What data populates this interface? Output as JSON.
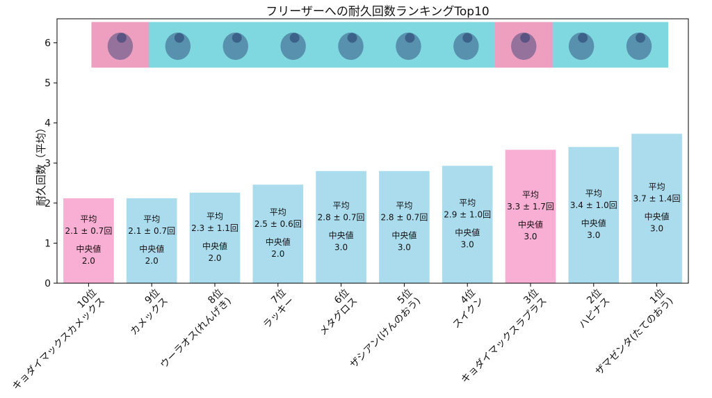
{
  "chart_data": {
    "type": "bar",
    "title": "フリーザーへの耐久回数ランキングTop10",
    "ylabel": "耐久回数（平均）",
    "xlabel": "",
    "ylim": [
      0,
      6.6
    ],
    "yticks": [
      0,
      1,
      2,
      3,
      4,
      5,
      6
    ],
    "grid": false,
    "categories": [
      "10位\nキョダイマックスカメックス",
      "9位\nカメックス",
      "8位\nウーラオス(れんげき)",
      "7位\nラッキー",
      "6位\nメタグロス",
      "5位\nザシアン(けんのおう)",
      "4位\nスイクン",
      "3位\nキョダイマックスラプラス",
      "2位\nハピナス",
      "1位\nザマゼンタ(たてのおう)"
    ],
    "values": [
      2.12,
      2.12,
      2.26,
      2.46,
      2.8,
      2.8,
      2.93,
      3.33,
      3.4,
      3.73
    ],
    "bar_labels": [
      {
        "mean_label": "平均",
        "mean_text": "2.1 ± 0.7回",
        "median_label": "中央値",
        "median_text": "2.0"
      },
      {
        "mean_label": "平均",
        "mean_text": "2.1 ± 0.7回",
        "median_label": "中央値",
        "median_text": "2.0"
      },
      {
        "mean_label": "平均",
        "mean_text": "2.3 ± 1.1回",
        "median_label": "中央値",
        "median_text": "2.0"
      },
      {
        "mean_label": "平均",
        "mean_text": "2.5 ± 0.6回",
        "median_label": "中央値",
        "median_text": "2.0"
      },
      {
        "mean_label": "平均",
        "mean_text": "2.8 ± 0.7回",
        "median_label": "中央値",
        "median_text": "3.0"
      },
      {
        "mean_label": "平均",
        "mean_text": "2.8 ± 0.7回",
        "median_label": "中央値",
        "median_text": "3.0"
      },
      {
        "mean_label": "平均",
        "mean_text": "2.9 ± 1.0回",
        "median_label": "中央値",
        "median_text": "3.0"
      },
      {
        "mean_label": "平均",
        "mean_text": "3.3 ± 1.7回",
        "median_label": "中央値",
        "median_text": "3.0"
      },
      {
        "mean_label": "平均",
        "mean_text": "3.4 ± 1.0回",
        "median_label": "中央値",
        "median_text": "3.0"
      },
      {
        "mean_label": "平均",
        "mean_text": "3.7 ± 1.4回",
        "median_label": "中央値",
        "median_text": "3.0"
      }
    ],
    "bar_colors": [
      "#f9aed3",
      "#abdcee",
      "#abdcee",
      "#abdcee",
      "#abdcee",
      "#abdcee",
      "#abdcee",
      "#f9aed3",
      "#abdcee",
      "#abdcee"
    ],
    "image_strip": {
      "y_range": [
        5.38,
        6.52
      ],
      "tiles": [
        {
          "icon": "gmax-blastoise-icon",
          "bg": "#ee9fbf"
        },
        {
          "icon": "blastoise-icon",
          "bg": "#7fd8e0"
        },
        {
          "icon": "urshifu-icon",
          "bg": "#7fd8e0"
        },
        {
          "icon": "chansey-icon",
          "bg": "#7fd8e0"
        },
        {
          "icon": "metagross-icon",
          "bg": "#7fd8e0"
        },
        {
          "icon": "zacian-icon",
          "bg": "#7fd8e0"
        },
        {
          "icon": "suicune-icon",
          "bg": "#7fd8e0"
        },
        {
          "icon": "gmax-lapras-icon",
          "bg": "#ee9fbf"
        },
        {
          "icon": "blissey-icon",
          "bg": "#7fd8e0"
        },
        {
          "icon": "zamazenta-icon",
          "bg": "#7fd8e0"
        }
      ]
    }
  }
}
